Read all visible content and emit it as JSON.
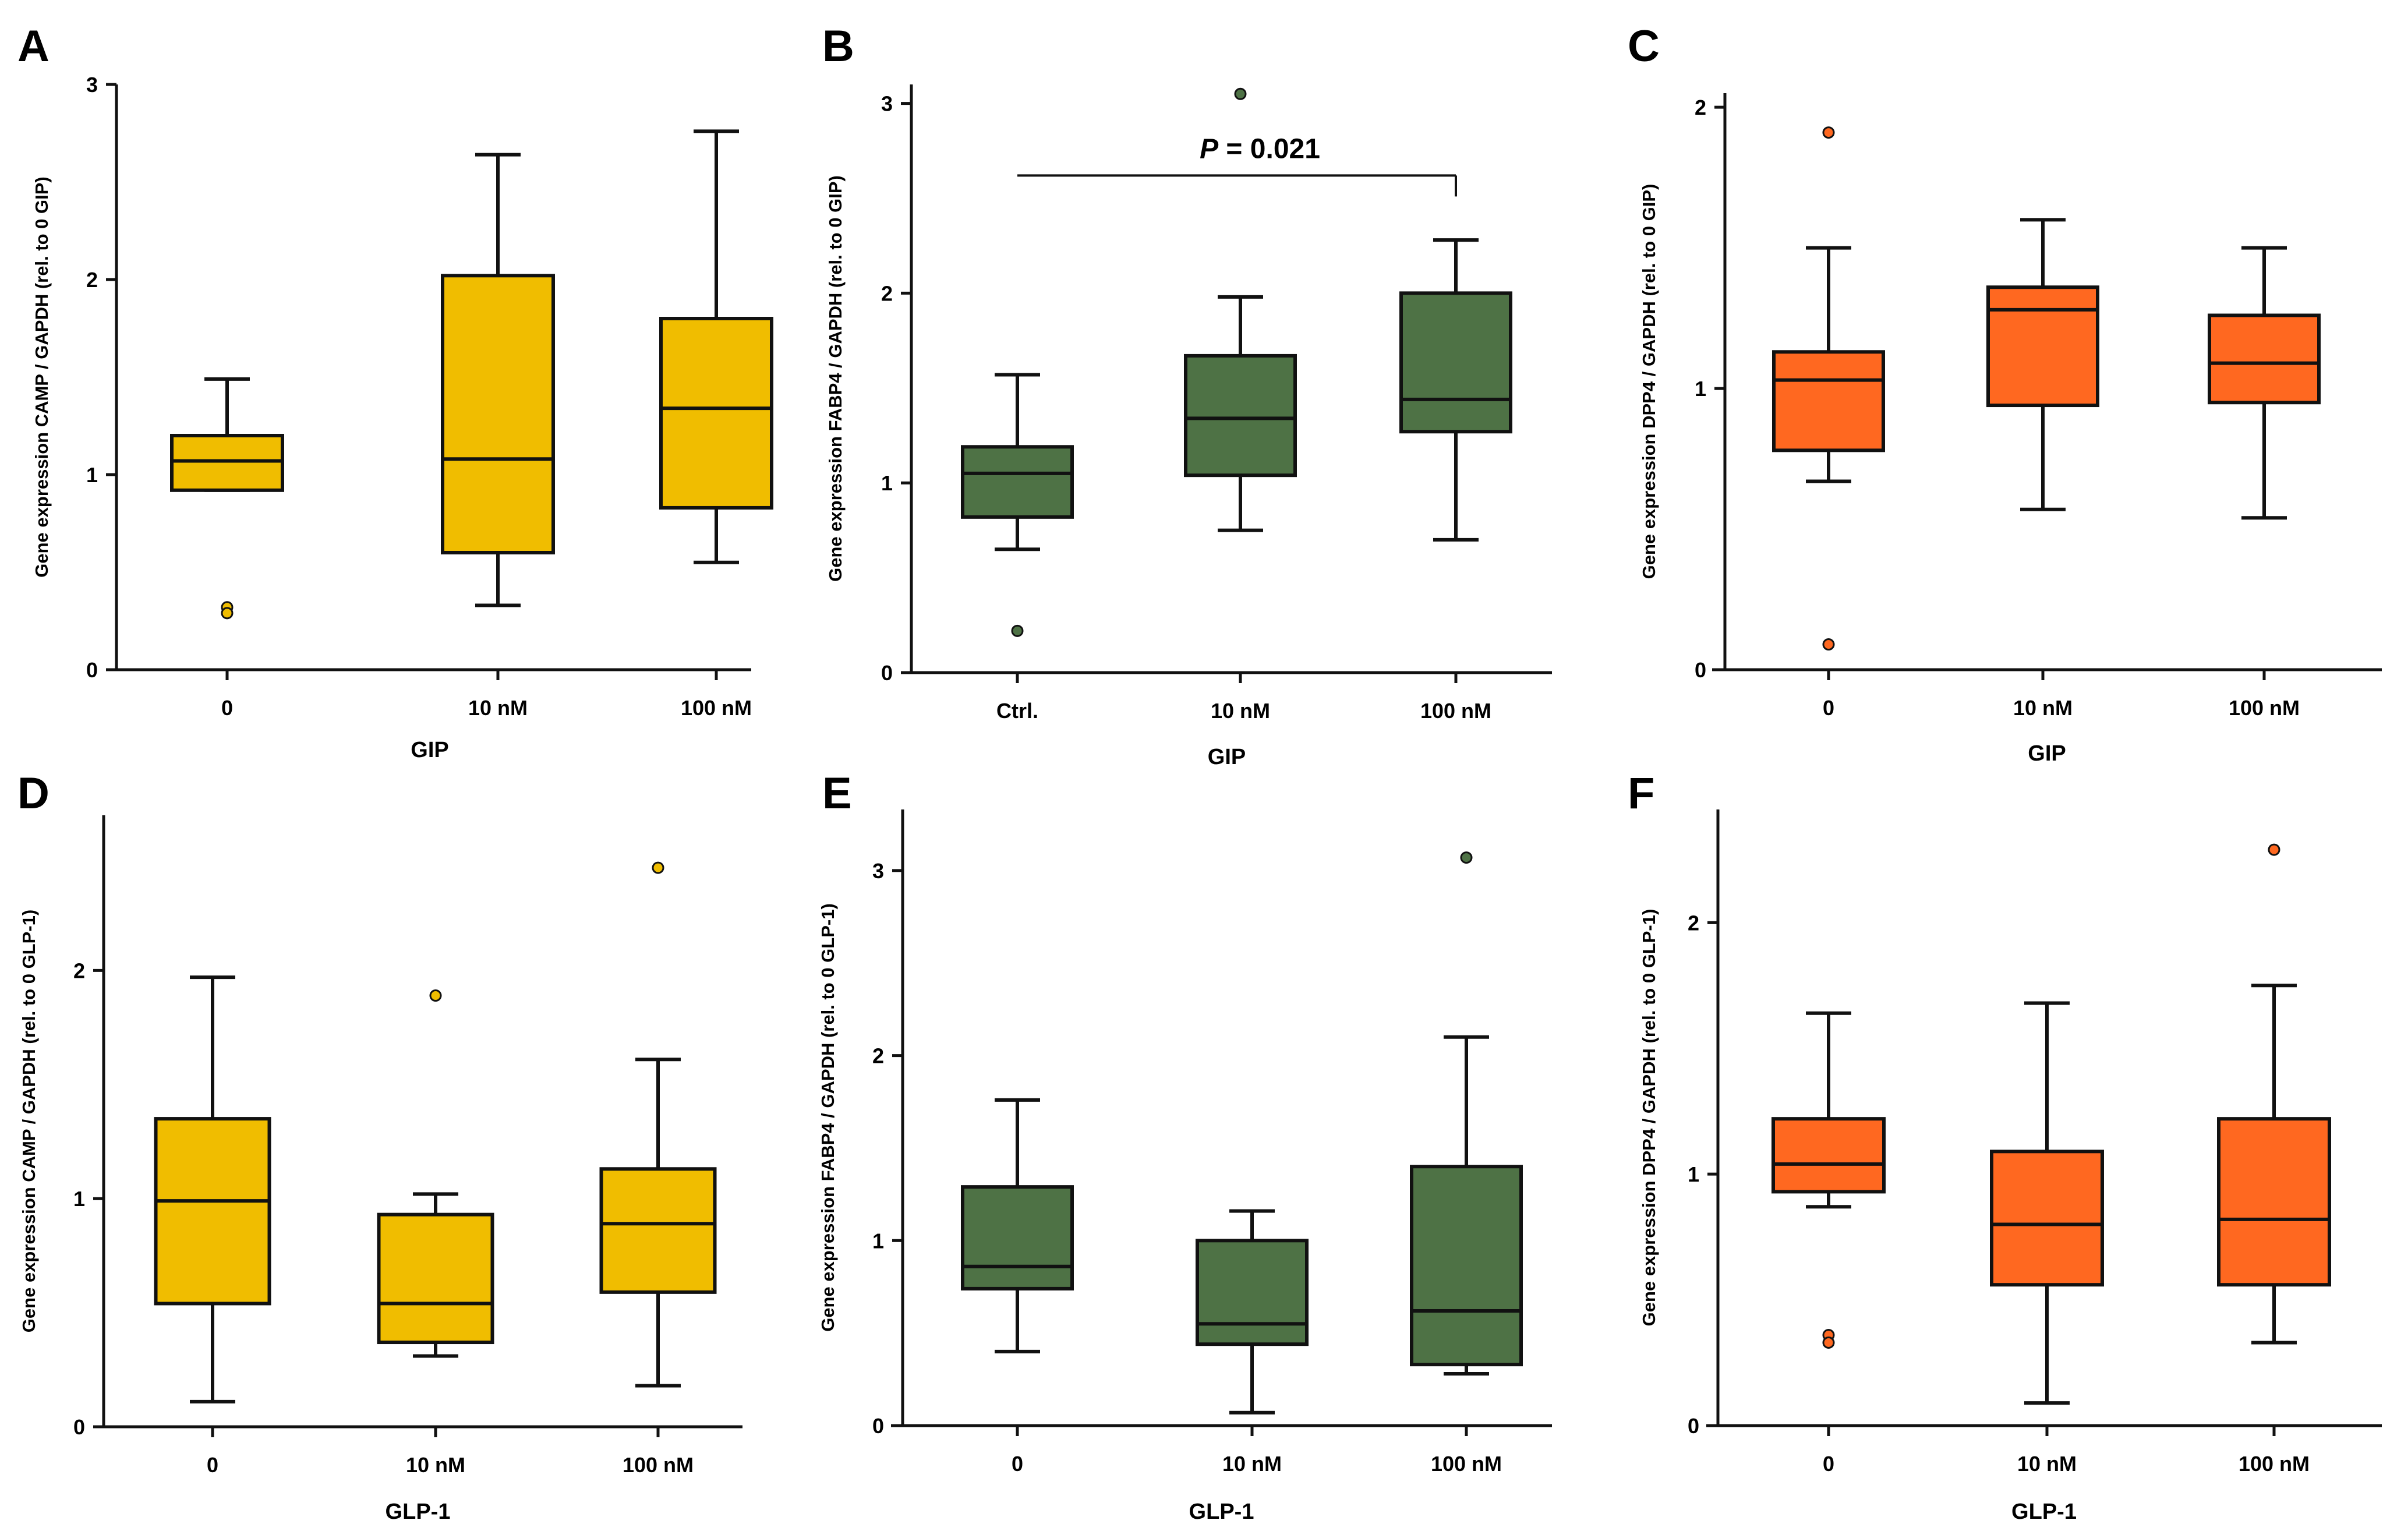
{
  "colors": {
    "gold": "#f0bd00",
    "green": "#4e7245",
    "orange": "#ff6820",
    "stroke": "#111111"
  },
  "chart_data": [
    {
      "panel": "A",
      "type": "box",
      "color": "gold",
      "ylabel": "Gene expression CAMP / GAPDH (rel. to 0 GIP)",
      "xlabel": "GIP",
      "ylim": [
        0,
        3
      ],
      "yticks": [
        0,
        1,
        2,
        3
      ],
      "ytick_labels": [
        "0",
        "1",
        "2",
        "3"
      ],
      "categories": [
        "0",
        "10 nM",
        "100 nM"
      ],
      "boxes": [
        {
          "whisker_low": 0.92,
          "q1": 0.92,
          "median": 1.07,
          "q3": 1.2,
          "whisker_high": 1.49,
          "outliers": [
            0.32,
            0.29
          ]
        },
        {
          "whisker_low": 0.33,
          "q1": 0.6,
          "median": 1.08,
          "q3": 2.02,
          "whisker_high": 2.64,
          "outliers": []
        },
        {
          "whisker_low": 0.55,
          "q1": 0.83,
          "median": 1.34,
          "q3": 1.8,
          "whisker_high": 2.76,
          "outliers": []
        }
      ]
    },
    {
      "panel": "B",
      "type": "box",
      "color": "green",
      "ylabel": "Gene expression FABP4 / GAPDH (rel. to 0 GIP)",
      "xlabel": "GIP",
      "ylim": [
        0,
        3.1
      ],
      "yticks": [
        0,
        1,
        2,
        3
      ],
      "ytick_labels": [
        "0",
        "1",
        "2",
        "3"
      ],
      "categories": [
        "Ctrl.",
        "10 nM",
        "100 nM"
      ],
      "boxes": [
        {
          "whisker_low": 0.65,
          "q1": 0.82,
          "median": 1.05,
          "q3": 1.19,
          "whisker_high": 1.57,
          "outliers": [
            0.22
          ]
        },
        {
          "whisker_low": 0.75,
          "q1": 1.04,
          "median": 1.34,
          "q3": 1.67,
          "whisker_high": 1.98,
          "outliers": [
            3.05
          ]
        },
        {
          "whisker_low": 0.7,
          "q1": 1.27,
          "median": 1.44,
          "q3": 2.0,
          "whisker_high": 2.28,
          "outliers": []
        }
      ],
      "annotation": {
        "from": 0,
        "to": 2,
        "y": 2.62,
        "label": "P = 0.021"
      }
    },
    {
      "panel": "C",
      "type": "box",
      "color": "orange",
      "ylabel": "Gene expression DPP4 / GAPDH (rel. to 0 GIP)",
      "xlabel": "GIP",
      "ylim": [
        0,
        2.05
      ],
      "yticks": [
        0,
        1,
        2
      ],
      "ytick_labels": [
        "0",
        "1",
        "2"
      ],
      "categories": [
        "0",
        "10 nM",
        "100 nM"
      ],
      "boxes": [
        {
          "whisker_low": 0.67,
          "q1": 0.78,
          "median": 1.03,
          "q3": 1.13,
          "whisker_high": 1.5,
          "outliers": [
            1.91,
            0.09
          ]
        },
        {
          "whisker_low": 0.57,
          "q1": 0.94,
          "median": 1.28,
          "q3": 1.36,
          "whisker_high": 1.6,
          "outliers": []
        },
        {
          "whisker_low": 0.54,
          "q1": 0.95,
          "median": 1.09,
          "q3": 1.26,
          "whisker_high": 1.5,
          "outliers": []
        }
      ]
    },
    {
      "panel": "D",
      "type": "box",
      "color": "gold",
      "ylabel": "Gene expression CAMP / GAPDH (rel. to 0 GLP-1)",
      "xlabel": "GLP-1",
      "ylim": [
        0,
        2.68
      ],
      "yticks": [
        0,
        1,
        2
      ],
      "ytick_labels": [
        "0",
        "1",
        "2"
      ],
      "categories": [
        "0",
        "10 nM",
        "100 nM"
      ],
      "boxes": [
        {
          "whisker_low": 0.11,
          "q1": 0.54,
          "median": 0.99,
          "q3": 1.35,
          "whisker_high": 1.97,
          "outliers": []
        },
        {
          "whisker_low": 0.31,
          "q1": 0.37,
          "median": 0.54,
          "q3": 0.93,
          "whisker_high": 1.02,
          "outliers": [
            1.89
          ]
        },
        {
          "whisker_low": 0.18,
          "q1": 0.59,
          "median": 0.89,
          "q3": 1.13,
          "whisker_high": 1.61,
          "outliers": [
            2.45
          ]
        }
      ]
    },
    {
      "panel": "E",
      "type": "box",
      "color": "green",
      "ylabel": "Gene expression FABP4 / GAPDH (rel. to 0 GLP-1)",
      "xlabel": "GLP-1",
      "ylim": [
        0,
        3.33
      ],
      "yticks": [
        0,
        1,
        2,
        3
      ],
      "ytick_labels": [
        "0",
        "1",
        "2",
        "3"
      ],
      "categories": [
        "0",
        "10 nM",
        "100 nM"
      ],
      "boxes": [
        {
          "whisker_low": 0.4,
          "q1": 0.74,
          "median": 0.86,
          "q3": 1.29,
          "whisker_high": 1.76,
          "outliers": []
        },
        {
          "whisker_low": 0.07,
          "q1": 0.44,
          "median": 0.55,
          "q3": 1.0,
          "whisker_high": 1.16,
          "outliers": []
        },
        {
          "whisker_low": 0.28,
          "q1": 0.33,
          "median": 0.62,
          "q3": 1.4,
          "whisker_high": 2.1,
          "outliers": [
            3.07
          ]
        }
      ]
    },
    {
      "panel": "F",
      "type": "box",
      "color": "orange",
      "ylabel": "Gene expression DPP4 / GAPDH (rel. to 0 GLP-1)",
      "xlabel": "GLP-1",
      "ylim": [
        0,
        2.45
      ],
      "yticks": [
        0,
        1,
        2
      ],
      "ytick_labels": [
        "0",
        "1",
        "2"
      ],
      "categories": [
        "0",
        "10 nM",
        "100 nM"
      ],
      "boxes": [
        {
          "whisker_low": 0.87,
          "q1": 0.93,
          "median": 1.04,
          "q3": 1.22,
          "whisker_high": 1.64,
          "outliers": [
            0.36,
            0.33
          ]
        },
        {
          "whisker_low": 0.09,
          "q1": 0.56,
          "median": 0.8,
          "q3": 1.09,
          "whisker_high": 1.68,
          "outliers": []
        },
        {
          "whisker_low": 0.33,
          "q1": 0.56,
          "median": 0.82,
          "q3": 1.22,
          "whisker_high": 1.75,
          "outliers": [
            2.29
          ]
        }
      ]
    }
  ]
}
